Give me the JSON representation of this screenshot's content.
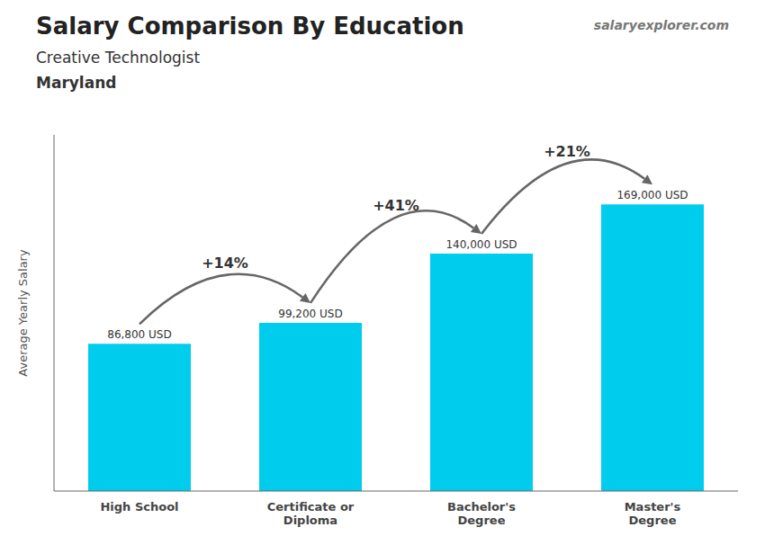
{
  "chart_data": {
    "type": "bar",
    "title": "Salary Comparison By Education",
    "subtitle": [
      "Creative Technologist",
      "Maryland"
    ],
    "watermark": [
      "salary",
      "explorer",
      ".com"
    ],
    "y_label": "Average Yearly Salary",
    "categories": [
      "High School",
      "Certificate or\nDiploma",
      "Bachelor's\nDegree",
      "Master's\nDegree"
    ],
    "values": [
      86800,
      99200,
      140000,
      169000
    ],
    "value_labels": [
      "86,800 USD",
      "99,200 USD",
      "140,000 USD",
      "169,000 USD"
    ],
    "data_labels": true,
    "color": "#00ccee",
    "ylim": [
      0,
      210000
    ],
    "tick_labels": "x",
    "grid": false,
    "annotations": [
      "+14%",
      "+41%",
      "+21%"
    ]
  }
}
